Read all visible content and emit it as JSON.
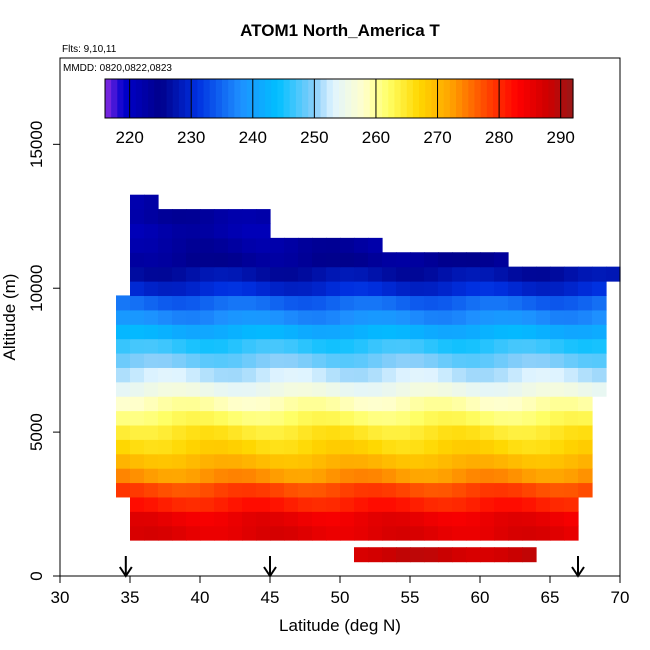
{
  "chart_data": {
    "type": "heatmap",
    "title": "ATOM1 North_America T",
    "annotations": {
      "flights": "Flts: 9,10,11",
      "dates": "MMDD: 0820,0822,0823"
    },
    "xlabel": "Latitude (deg N)",
    "ylabel": "Altitude (m)",
    "xlim": [
      30,
      70
    ],
    "ylim": [
      0,
      18000
    ],
    "x_ticks": [
      30,
      35,
      40,
      45,
      50,
      55,
      60,
      65,
      70
    ],
    "y_ticks": [
      0,
      5000,
      10000,
      15000
    ],
    "colorbar": {
      "range": [
        216,
        292
      ],
      "ticks": [
        220,
        230,
        240,
        250,
        260,
        270,
        280,
        290
      ],
      "stops": [
        {
          "v": 216,
          "c": "#8a2be2"
        },
        {
          "v": 219,
          "c": "#0000cc"
        },
        {
          "v": 225,
          "c": "#00008b"
        },
        {
          "v": 231,
          "c": "#0030e0"
        },
        {
          "v": 238,
          "c": "#1e90ff"
        },
        {
          "v": 244,
          "c": "#00bfff"
        },
        {
          "v": 250,
          "c": "#87cefa"
        },
        {
          "v": 253,
          "c": "#e0f4ff"
        },
        {
          "v": 258,
          "c": "#ffffcc"
        },
        {
          "v": 262,
          "c": "#ffff66"
        },
        {
          "v": 267,
          "c": "#ffd700"
        },
        {
          "v": 272,
          "c": "#ffa500"
        },
        {
          "v": 278,
          "c": "#ff4500"
        },
        {
          "v": 283,
          "c": "#ff0000"
        },
        {
          "v": 288,
          "c": "#cd0000"
        },
        {
          "v": 292,
          "c": "#9a1818"
        }
      ]
    },
    "profile_markers_lat": [
      34.7,
      45.0,
      67.0
    ],
    "grid": false,
    "legend": "colorbar-top-inset",
    "temperature_profile": [
      {
        "alt": 750,
        "T": 288
      },
      {
        "alt": 1500,
        "T": 286
      },
      {
        "alt": 2000,
        "T": 285
      },
      {
        "alt": 2500,
        "T": 281
      },
      {
        "alt": 3000,
        "T": 278
      },
      {
        "alt": 3500,
        "T": 273
      },
      {
        "alt": 4000,
        "T": 270
      },
      {
        "alt": 4500,
        "T": 267
      },
      {
        "alt": 5000,
        "T": 265
      },
      {
        "alt": 5500,
        "T": 262
      },
      {
        "alt": 6000,
        "T": 259
      },
      {
        "alt": 6500,
        "T": 255
      },
      {
        "alt": 7000,
        "T": 252
      },
      {
        "alt": 7500,
        "T": 249
      },
      {
        "alt": 8000,
        "T": 246
      },
      {
        "alt": 8500,
        "T": 242
      },
      {
        "alt": 9000,
        "T": 238
      },
      {
        "alt": 9500,
        "T": 235
      },
      {
        "alt": 10000,
        "T": 230
      },
      {
        "alt": 10500,
        "T": 227
      },
      {
        "alt": 11000,
        "T": 224
      },
      {
        "alt": 11500,
        "T": 223
      },
      {
        "alt": 12000,
        "T": 222
      },
      {
        "alt": 12500,
        "T": 223
      },
      {
        "alt": 13000,
        "T": 222
      }
    ],
    "coverage": [
      {
        "alt": 750,
        "from": 51.0,
        "to": 64.0
      },
      {
        "alt": 1500,
        "from": 35.0,
        "to": 67.0
      },
      {
        "alt": 2000,
        "from": 35.0,
        "to": 67.0
      },
      {
        "alt": 2500,
        "from": 35.0,
        "to": 67.0
      },
      {
        "alt": 3000,
        "from": 34.0,
        "to": 68.0
      },
      {
        "alt": 3500,
        "from": 34.0,
        "to": 68.0
      },
      {
        "alt": 4000,
        "from": 34.0,
        "to": 68.0
      },
      {
        "alt": 4500,
        "from": 34.0,
        "to": 68.0
      },
      {
        "alt": 5000,
        "from": 34.0,
        "to": 68.0
      },
      {
        "alt": 5500,
        "from": 34.0,
        "to": 68.0
      },
      {
        "alt": 6000,
        "from": 34.0,
        "to": 68.0
      },
      {
        "alt": 6500,
        "from": 34.0,
        "to": 69.0
      },
      {
        "alt": 7000,
        "from": 34.0,
        "to": 69.0
      },
      {
        "alt": 7500,
        "from": 34.0,
        "to": 69.0
      },
      {
        "alt": 8000,
        "from": 34.0,
        "to": 69.0
      },
      {
        "alt": 8500,
        "from": 34.0,
        "to": 69.0
      },
      {
        "alt": 9000,
        "from": 34.0,
        "to": 69.0
      },
      {
        "alt": 9500,
        "from": 34.0,
        "to": 69.0
      },
      {
        "alt": 10000,
        "from": 35.0,
        "to": 69.0
      },
      {
        "alt": 10500,
        "from": 35.0,
        "to": 70.0
      },
      {
        "alt": 11000,
        "from": 35.0,
        "to": 62.0
      },
      {
        "alt": 11500,
        "from": 35.0,
        "to": 53.0
      },
      {
        "alt": 12000,
        "from": 35.0,
        "to": 45.0
      },
      {
        "alt": 12500,
        "from": 35.0,
        "to": 45.0
      },
      {
        "alt": 13000,
        "from": 35.0,
        "to": 37.0
      }
    ]
  }
}
